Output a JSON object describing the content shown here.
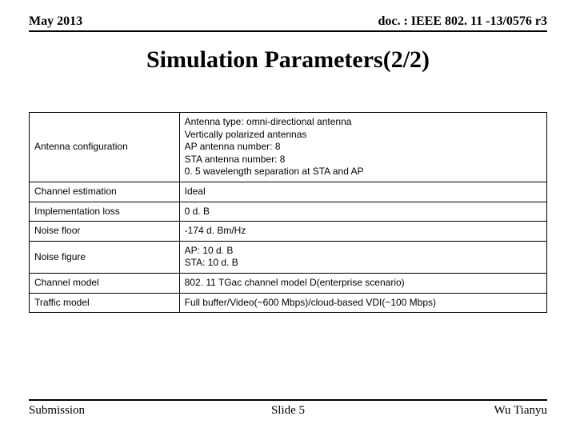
{
  "header": {
    "left": "May 2013",
    "right": "doc. : IEEE 802. 11 -13/0576 r3"
  },
  "title": "Simulation Parameters(2/2)",
  "table": {
    "rows": [
      {
        "label": "Antenna configuration",
        "value": "Antenna type: omni-directional antenna\nVertically polarized antennas\nAP antenna number: 8\nSTA antenna number: 8\n0. 5 wavelength separation at STA and AP"
      },
      {
        "label": "Channel estimation",
        "value": "Ideal"
      },
      {
        "label": "Implementation loss",
        "value": "0 d. B"
      },
      {
        "label": "Noise floor",
        "value": "-174 d. Bm/Hz"
      },
      {
        "label": "Noise figure",
        "value": "AP: 10 d. B\nSTA: 10 d. B"
      },
      {
        "label": "Channel model",
        "value": "802. 11 TGac channel model D(enterprise scenario)"
      },
      {
        "label": "Traffic model",
        "value": "Full buffer/Video(~600 Mbps)/cloud-based VDI(~100 Mbps)"
      }
    ]
  },
  "footer": {
    "left": "Submission",
    "center": "Slide 5",
    "right": "Wu Tianyu"
  }
}
